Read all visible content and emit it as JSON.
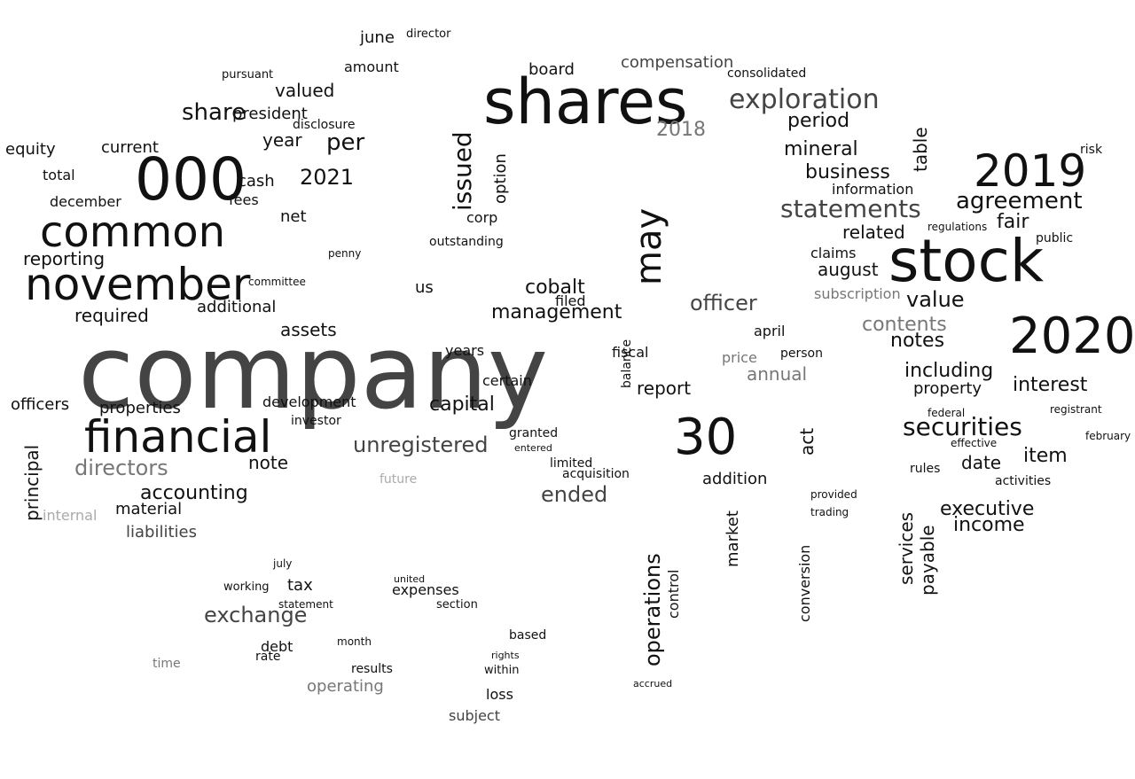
{
  "word_cloud": {
    "words": [
      "company",
      "shares",
      "stock",
      "financial",
      "november",
      "000",
      "common",
      "2019",
      "2020",
      "30",
      "statements",
      "exploration",
      "may",
      "issued",
      "agreement",
      "securities",
      "shares_dup",
      "value",
      "income",
      "accounting",
      "exchange",
      "directors",
      "unregistered",
      "ended",
      "management",
      "officer",
      "operations",
      "interest",
      "notes",
      "including",
      "contents",
      "property",
      "item",
      "executive",
      "period",
      "mineral",
      "business",
      "related",
      "fair",
      "august",
      "subscription",
      "claims",
      "information",
      "share",
      "president",
      "valued",
      "equity",
      "current",
      "year",
      "per",
      "cash",
      "2021",
      "total",
      "december",
      "reporting",
      "required",
      "additional",
      "assets",
      "properties",
      "officers",
      "principal",
      "note",
      "capital",
      "certain",
      "report",
      "fiscal",
      "years",
      "cobalt",
      "filed",
      "corp",
      "option",
      "outstanding",
      "us",
      "board",
      "compensation",
      "consolidated",
      "2018",
      "act",
      "table",
      "services",
      "payable",
      "activities",
      "date",
      "rules",
      "effective",
      "federal",
      "registrant",
      "public",
      "regulations",
      "risk",
      "liabilities",
      "material",
      "development",
      "investor",
      "internal",
      "future",
      "limited",
      "acquisition",
      "addition",
      "market",
      "control",
      "conversion",
      "subject",
      "loss",
      "operating",
      "results",
      "debt",
      "tax",
      "working",
      "expenses",
      "amount",
      "june",
      "director",
      "disclosure",
      "pursuant",
      "fees",
      "net",
      "penny",
      "committee",
      "april",
      "person",
      "annual",
      "price",
      "balance",
      "granted",
      "entered",
      "provided",
      "trading",
      "february",
      "accrued",
      "based",
      "within",
      "rights",
      "section",
      "united",
      "statement",
      "july",
      "month",
      "rate",
      "time"
    ]
  }
}
